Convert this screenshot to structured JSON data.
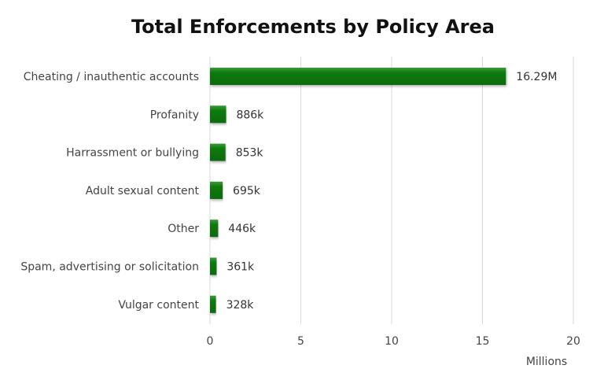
{
  "chart_data": {
    "type": "bar",
    "orientation": "horizontal",
    "title": "Total Enforcements by Policy Area",
    "xlabel": "Millions",
    "ylabel": "",
    "categories": [
      "Cheating / inauthentic accounts",
      "Profanity",
      "Harrassment or bullying",
      "Adult sexual content",
      "Other",
      "Spam, advertising or solicitation",
      "Vulgar content"
    ],
    "values": [
      16.29,
      0.886,
      0.853,
      0.695,
      0.446,
      0.361,
      0.328
    ],
    "data_labels": [
      "16.29M",
      "886k",
      "853k",
      "695k",
      "446k",
      "361k",
      "328k"
    ],
    "xlim": [
      0,
      20
    ],
    "xticks": [
      "0",
      "5",
      "10",
      "15",
      "20"
    ],
    "grid": true,
    "bar_color": "#0b7a0b"
  }
}
